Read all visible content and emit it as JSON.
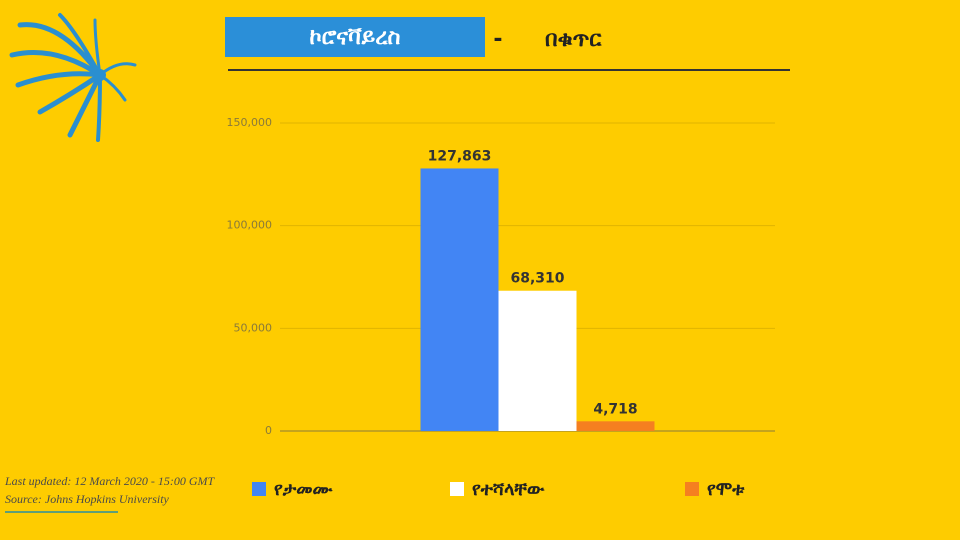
{
  "chart_data": {
    "type": "bar",
    "title": "ኮሮናቫይረስ",
    "title_separator": "-",
    "subtitle": "በቁጥር",
    "categories": [
      null
    ],
    "series": [
      {
        "name": "የታመሙ",
        "color": "#4285f4",
        "values": [
          127863
        ],
        "value_labels": [
          "127,863"
        ]
      },
      {
        "name": "የተሻላቸው",
        "color": "#ffffff",
        "values": [
          68310
        ],
        "value_labels": [
          "68,310"
        ]
      },
      {
        "name": "የሞቱ",
        "color": "#f57f20",
        "values": [
          4718
        ],
        "value_labels": [
          "4,718"
        ]
      }
    ],
    "ylim": [
      0,
      150000
    ],
    "yticks": [
      0,
      {
        "value": 50000,
        "label": "50,000"
      },
      {
        "value": 100000,
        "label": "100,000"
      },
      {
        "value": 150000,
        "label": "150,000"
      }
    ],
    "grid": true,
    "footer": {
      "updated": "Last updated: 12 March 2020 - 15:00 GMT",
      "source": "Source: Johns Hopkins University"
    }
  }
}
